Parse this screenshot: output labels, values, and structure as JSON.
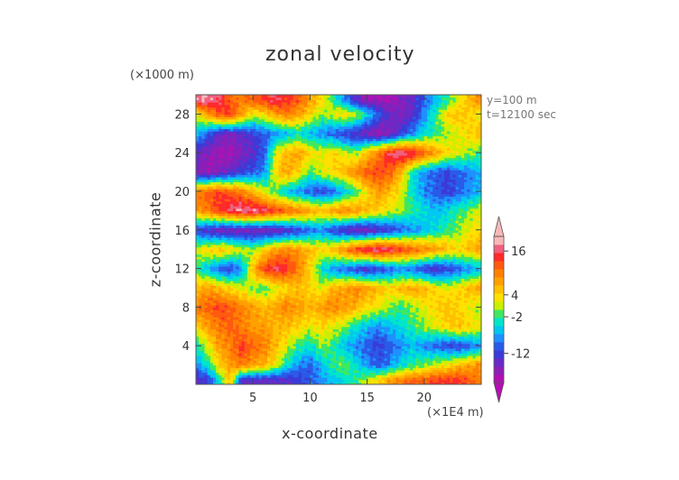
{
  "chart_data": {
    "type": "heatmap",
    "title": "zonal velocity",
    "xlabel": "x-coordinate",
    "ylabel": "z-coordinate",
    "x_unit": "(×1E4 m)",
    "y_unit": "(×1000 m)",
    "xlim": [
      0,
      25
    ],
    "ylim": [
      0,
      30
    ],
    "xticks": [
      5,
      10,
      15,
      20
    ],
    "yticks": [
      4,
      8,
      12,
      16,
      20,
      24,
      28
    ],
    "annotations": [
      "y=100 m",
      "t=12100 sec"
    ],
    "colorbar": {
      "tick_labels": [
        "16",
        "4",
        "-2",
        "-12"
      ],
      "tick_values": [
        16,
        4,
        -2,
        -12
      ],
      "levels": [
        -20,
        -18,
        -16,
        -14,
        -12,
        -10,
        -8,
        -6,
        -4,
        -2,
        0,
        2,
        4,
        6,
        8,
        10,
        12,
        14,
        16,
        18,
        20
      ],
      "colors": [
        "#b40fb4",
        "#8c1fb8",
        "#6a2ac6",
        "#3b3bd8",
        "#2a5ae8",
        "#1e90ff",
        "#00c8f0",
        "#00e6c8",
        "#40e860",
        "#c8f000",
        "#ffe000",
        "#ffc000",
        "#ffa000",
        "#ff8000",
        "#ff5a10",
        "#ff2a2a",
        "#f06080",
        "#f8b8b8"
      ],
      "extend": "both"
    },
    "bands": [
      {
        "z": 0.5,
        "values": [
          -14,
          -12,
          -4,
          6,
          -14,
          -14,
          -14,
          -14,
          -14,
          -12,
          -10,
          -8,
          -6,
          -4,
          -2,
          2,
          4,
          8,
          10,
          12,
          12,
          14,
          14,
          14,
          12,
          10
        ]
      },
      {
        "z": 2,
        "values": [
          -8,
          -4,
          4,
          8,
          10,
          8,
          6,
          2,
          -4,
          -8,
          -10,
          -6,
          -2,
          0,
          -4,
          -8,
          -10,
          -8,
          -4,
          -2,
          0,
          2,
          4,
          6,
          8,
          10
        ]
      },
      {
        "z": 4,
        "values": [
          -4,
          2,
          8,
          10,
          14,
          12,
          10,
          6,
          2,
          -2,
          -4,
          0,
          -2,
          -6,
          -8,
          -10,
          -12,
          -10,
          -8,
          -6,
          -8,
          -10,
          -12,
          -12,
          -10,
          -8
        ]
      },
      {
        "z": 6,
        "values": [
          4,
          8,
          10,
          12,
          10,
          8,
          8,
          6,
          6,
          4,
          2,
          4,
          2,
          0,
          -4,
          -6,
          -8,
          -6,
          -4,
          -2,
          0,
          2,
          4,
          6,
          4,
          2
        ]
      },
      {
        "z": 8,
        "values": [
          10,
          12,
          14,
          12,
          10,
          8,
          6,
          8,
          10,
          8,
          6,
          8,
          10,
          8,
          6,
          4,
          2,
          0,
          -2,
          0,
          2,
          4,
          6,
          4,
          2,
          0
        ]
      },
      {
        "z": 10,
        "values": [
          6,
          8,
          6,
          4,
          2,
          0,
          -2,
          2,
          4,
          6,
          4,
          2,
          6,
          8,
          10,
          8,
          6,
          4,
          6,
          8,
          6,
          4,
          2,
          4,
          6,
          8
        ]
      },
      {
        "z": 12,
        "values": [
          -2,
          -6,
          -10,
          -12,
          -8,
          6,
          14,
          16,
          14,
          10,
          4,
          -4,
          -8,
          -10,
          -12,
          -14,
          -12,
          -10,
          -8,
          -10,
          -12,
          -14,
          -12,
          -10,
          -8,
          -6
        ]
      },
      {
        "z": 14,
        "values": [
          2,
          4,
          6,
          4,
          2,
          0,
          4,
          8,
          10,
          8,
          6,
          4,
          6,
          10,
          14,
          16,
          18,
          16,
          14,
          12,
          10,
          8,
          6,
          4,
          6,
          8
        ]
      },
      {
        "z": 16,
        "values": [
          -12,
          -14,
          -16,
          -16,
          -16,
          -16,
          -16,
          -16,
          -14,
          -12,
          -10,
          -8,
          -12,
          -14,
          -16,
          -16,
          -14,
          -12,
          -10,
          -8,
          -6,
          -4,
          -2,
          0,
          2,
          4
        ]
      },
      {
        "z": 18,
        "values": [
          8,
          10,
          14,
          16,
          18,
          18,
          16,
          14,
          12,
          10,
          8,
          6,
          8,
          10,
          8,
          6,
          4,
          2,
          0,
          -2,
          -4,
          -6,
          -4,
          -2,
          0,
          2
        ]
      },
      {
        "z": 20,
        "values": [
          10,
          12,
          14,
          12,
          10,
          6,
          2,
          -2,
          -6,
          -8,
          -10,
          -12,
          -10,
          -6,
          -2,
          4,
          8,
          6,
          2,
          -4,
          -8,
          -10,
          -12,
          -10,
          -8,
          -6
        ]
      },
      {
        "z": 22,
        "values": [
          -16,
          -18,
          -16,
          -14,
          -12,
          -10,
          -8,
          4,
          8,
          4,
          -2,
          2,
          4,
          6,
          10,
          12,
          14,
          12,
          6,
          -4,
          -8,
          -10,
          -12,
          -10,
          -8,
          -6
        ]
      },
      {
        "z": 24,
        "values": [
          -14,
          -16,
          -18,
          -18,
          -16,
          -14,
          -10,
          2,
          6,
          8,
          4,
          2,
          4,
          2,
          0,
          6,
          10,
          16,
          18,
          16,
          12,
          8,
          4,
          2,
          0,
          -2
        ]
      },
      {
        "z": 26,
        "values": [
          -6,
          -10,
          -14,
          -16,
          -14,
          -12,
          -10,
          -8,
          -6,
          -4,
          -6,
          -8,
          -10,
          -12,
          -14,
          -16,
          -18,
          -16,
          -12,
          -8,
          -4,
          -2,
          0,
          2,
          4,
          6
        ]
      },
      {
        "z": 28,
        "values": [
          2,
          8,
          12,
          14,
          8,
          2,
          4,
          8,
          10,
          8,
          4,
          0,
          2,
          4,
          2,
          -4,
          -10,
          -14,
          -16,
          -14,
          -8,
          -2,
          4,
          6,
          4,
          2
        ]
      },
      {
        "z": 29.5,
        "values": [
          18,
          18,
          16,
          12,
          10,
          12,
          14,
          16,
          14,
          12,
          8,
          4,
          -2,
          -8,
          -14,
          -18,
          -18,
          -18,
          -16,
          -14,
          -10,
          -6,
          -2,
          2,
          6,
          10
        ]
      }
    ]
  }
}
